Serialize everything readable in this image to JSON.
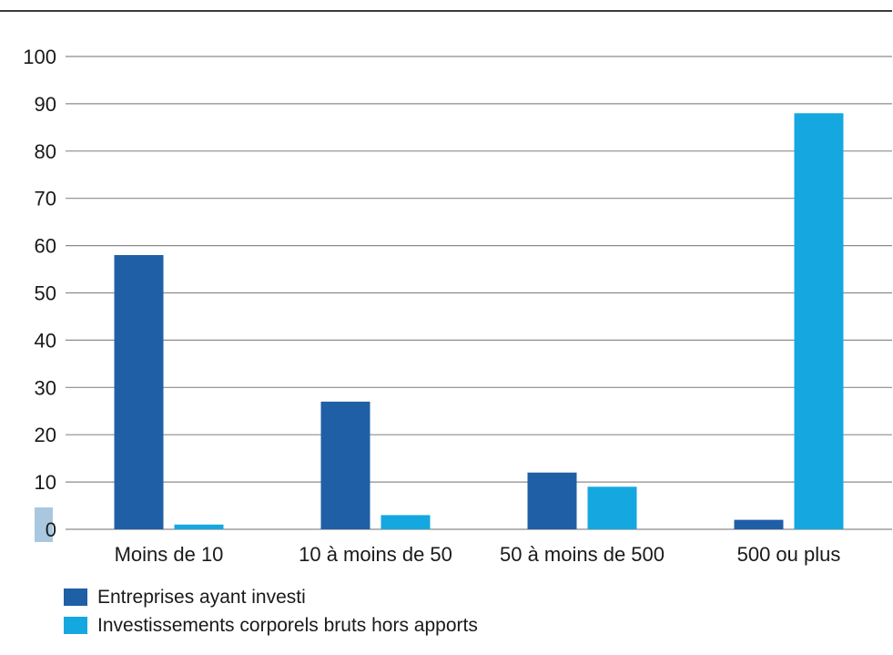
{
  "chart_data": {
    "type": "bar",
    "title": "",
    "xlabel": "",
    "ylabel": "",
    "ylim": [
      0,
      100
    ],
    "yticks": [
      0,
      10,
      20,
      30,
      40,
      50,
      60,
      70,
      80,
      90,
      100
    ],
    "grid": true,
    "legend_position": "bottom-left",
    "categories": [
      "Moins de 10",
      "10 à moins de 50",
      "50 à moins de 500",
      "500 ou plus"
    ],
    "series": [
      {
        "name": "Entreprises ayant investi",
        "color": "#1f5fa6",
        "values": [
          58,
          27,
          12,
          2
        ]
      },
      {
        "name": "Investissements corporels bruts hors apports",
        "color": "#15a8e0",
        "values": [
          1,
          3,
          9,
          88
        ]
      }
    ]
  },
  "colors": {
    "grid": "#8c8c8c",
    "top_rule": "#3a3a3a",
    "zero_highlight": "#a9c8e0",
    "text": "#1a1a1a"
  }
}
